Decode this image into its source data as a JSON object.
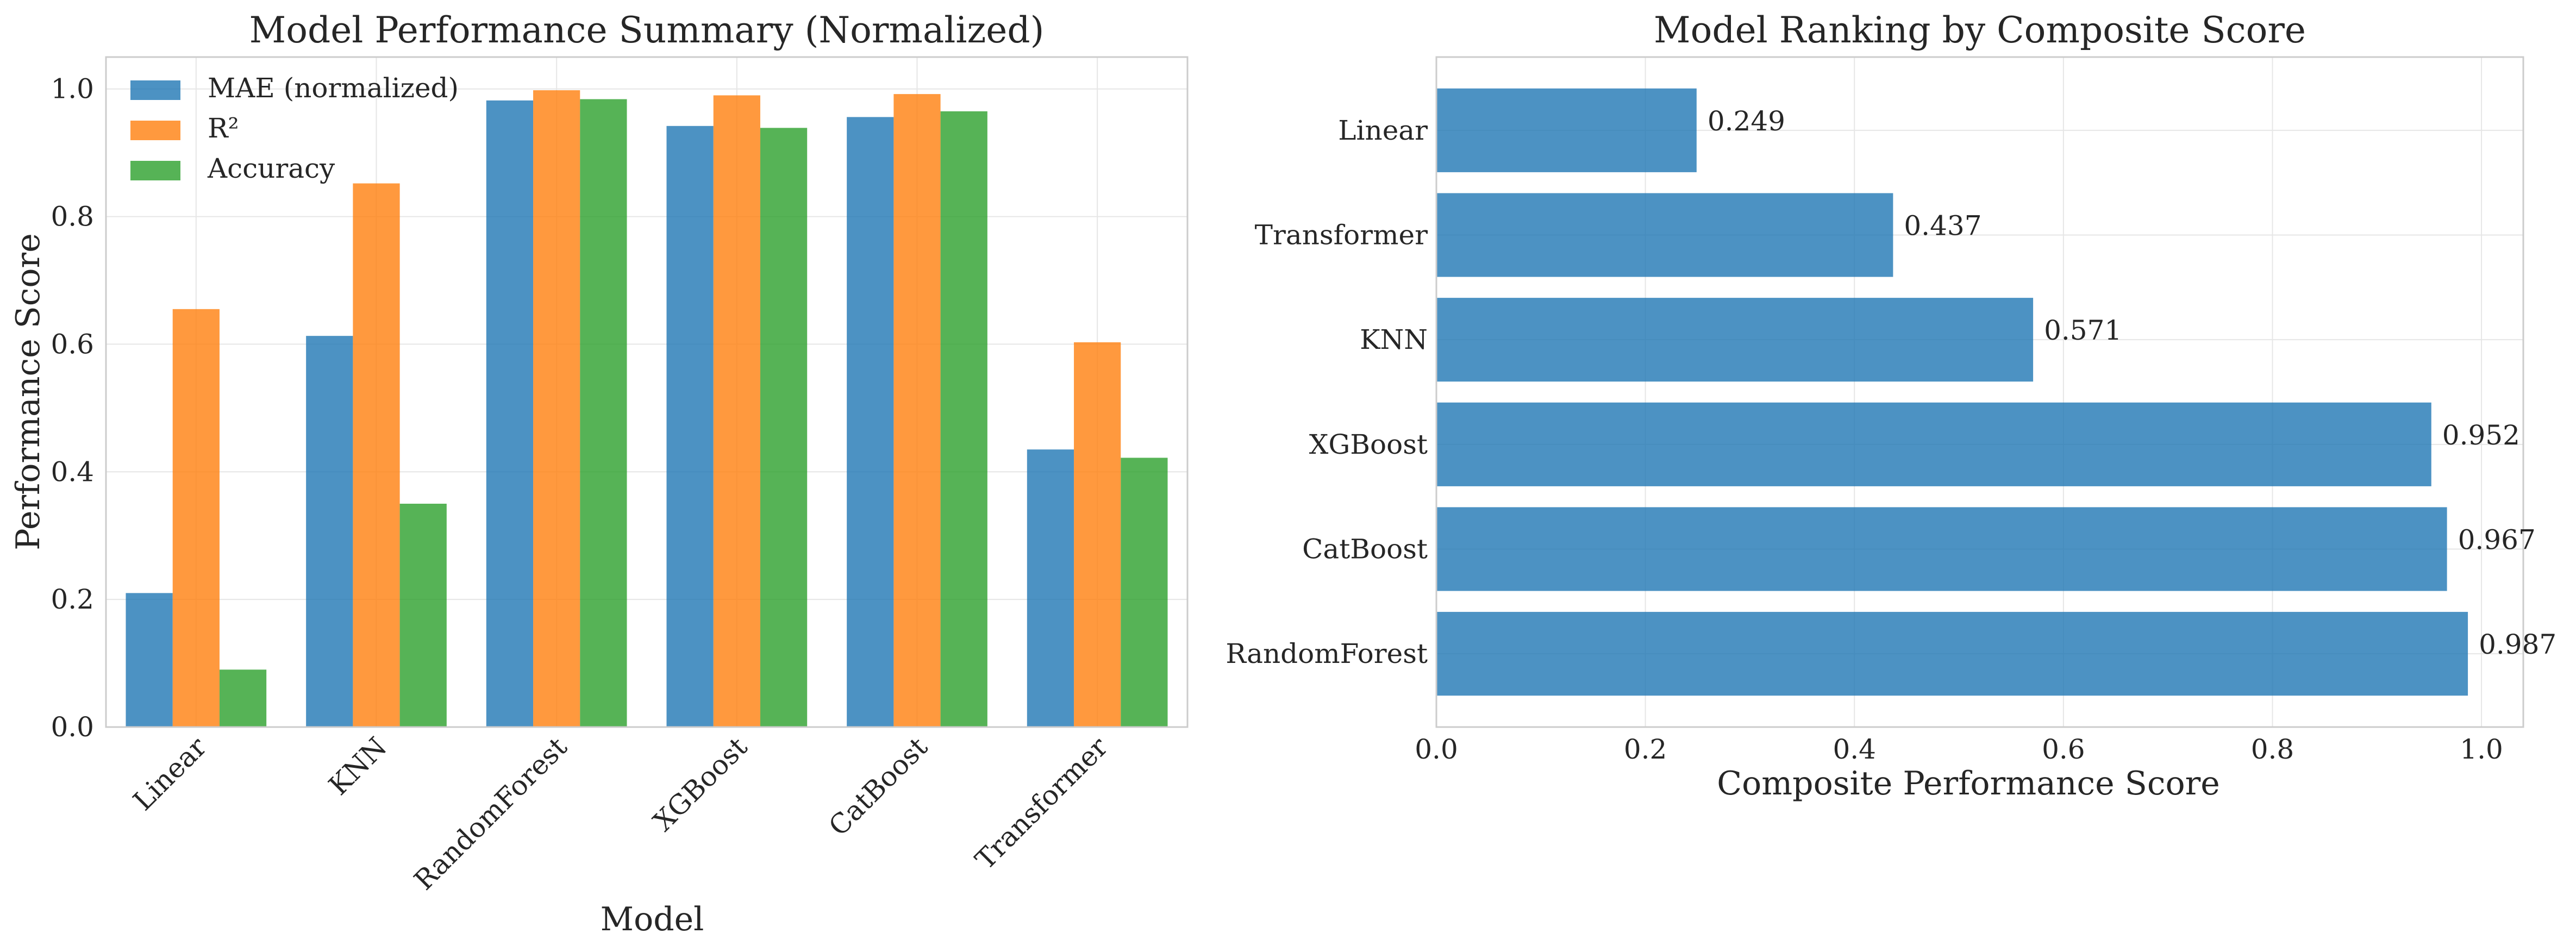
{
  "chart_data": [
    {
      "type": "bar",
      "title": "Model Performance Summary (Normalized)",
      "xlabel": "Model",
      "ylabel": "Performance Score",
      "categories": [
        "Linear",
        "KNN",
        "RandomForest",
        "XGBoost",
        "CatBoost",
        "Transformer"
      ],
      "series": [
        {
          "name": "MAE (normalized)",
          "color": "#1f77b4",
          "values": [
            0.21,
            0.613,
            0.982,
            0.942,
            0.956,
            0.435
          ]
        },
        {
          "name": "R²",
          "color": "#ff7f0e",
          "values": [
            0.655,
            0.852,
            0.998,
            0.99,
            0.992,
            0.603
          ]
        },
        {
          "name": "Accuracy",
          "color": "#2ca02c",
          "values": [
            0.09,
            0.35,
            0.984,
            0.939,
            0.965,
            0.422
          ]
        }
      ],
      "ylim": [
        0,
        1.05
      ],
      "yticks": [
        "0.0",
        "0.2",
        "0.4",
        "0.6",
        "0.8",
        "1.0"
      ],
      "grid": true,
      "legend": "top-left"
    },
    {
      "type": "bar",
      "orientation": "horizontal",
      "title": "Model Ranking by Composite Score",
      "xlabel": "Composite Performance Score",
      "ylabel": "",
      "categories": [
        "RandomForest",
        "CatBoost",
        "XGBoost",
        "KNN",
        "Transformer",
        "Linear"
      ],
      "values": [
        0.987,
        0.967,
        0.952,
        0.571,
        0.437,
        0.249
      ],
      "value_labels": [
        "0.987",
        "0.967",
        "0.952",
        "0.571",
        "0.437",
        "0.249"
      ],
      "color": "#1f77b4",
      "xlim": [
        0,
        1.04
      ],
      "xticks": [
        "0.0",
        "0.2",
        "0.4",
        "0.6",
        "0.8",
        "1.0"
      ],
      "grid": true
    }
  ]
}
